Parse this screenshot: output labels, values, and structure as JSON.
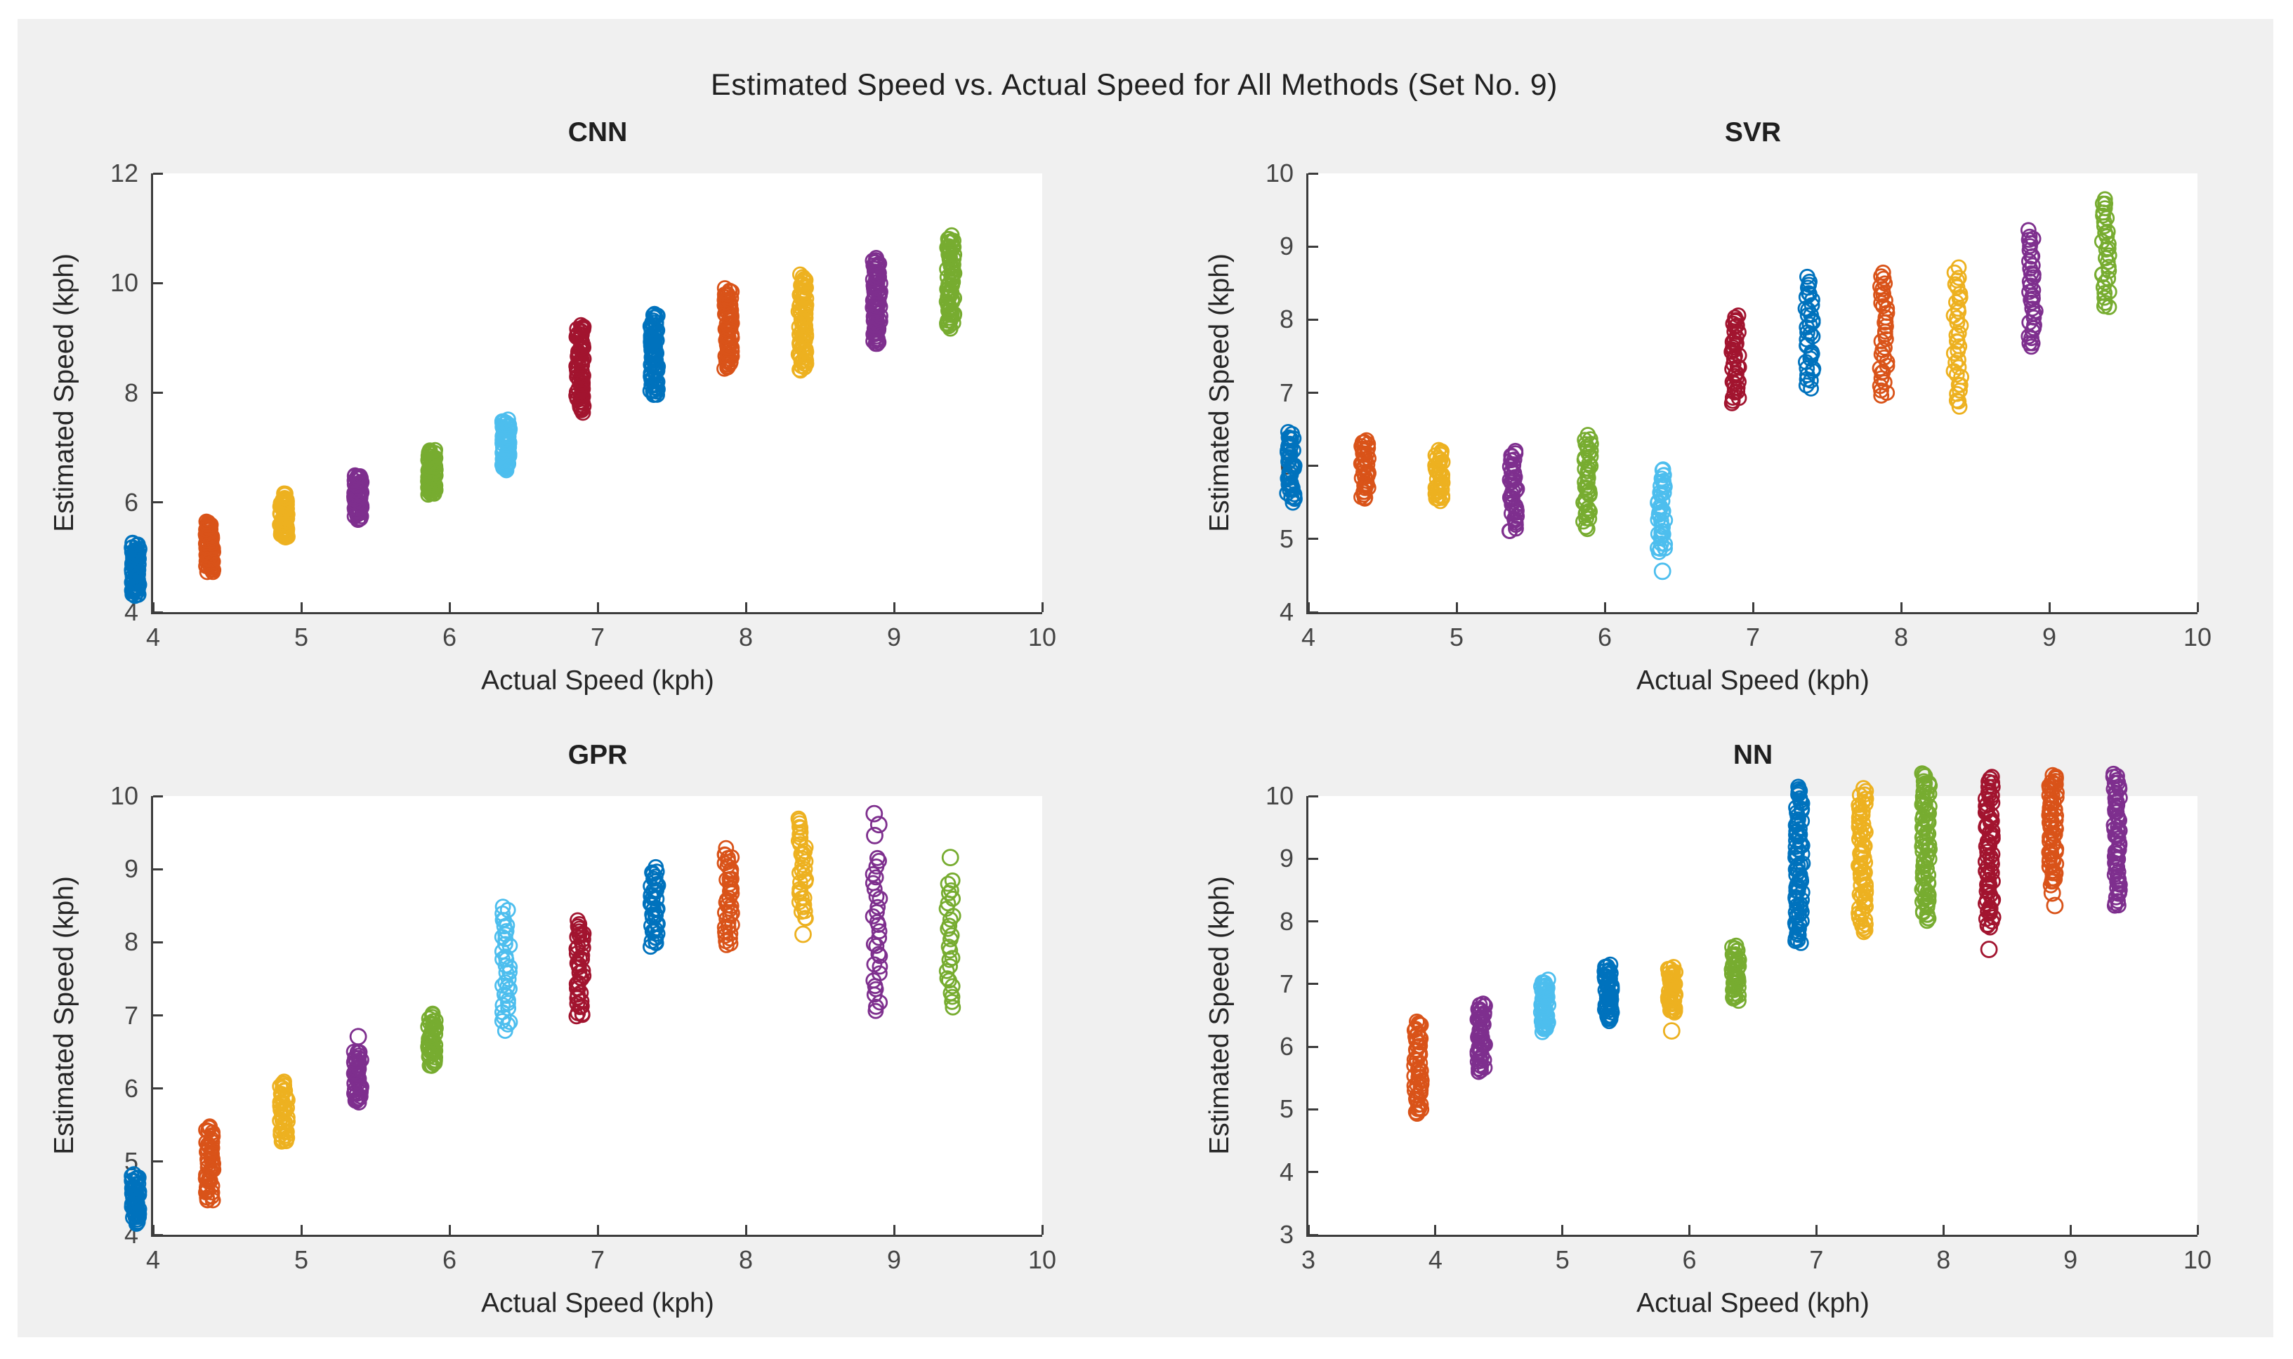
{
  "figure": {
    "title": "Estimated Speed vs. Actual Speed for All Methods (Set No. 9)",
    "background": "#ffffff",
    "panel_color": "#f0f0f0",
    "spine_color": "#3c3c3c",
    "text_color": "#1f1f1f",
    "tick_label_color": "#454545"
  },
  "palette": {
    "blue": "#0072BD",
    "orange": "#D95319",
    "yellow": "#EDB120",
    "purple": "#7E2F8E",
    "green": "#77AC30",
    "lightblue": "#4DBEEE",
    "darkred": "#A2142F"
  },
  "chart_data": [
    {
      "id": "cnn",
      "type": "scatter",
      "title": "CNN",
      "xlabel": "Actual Speed (kph)",
      "ylabel": "Estimated Speed (kph)",
      "xlim": [
        4,
        10
      ],
      "ylim": [
        4,
        12
      ],
      "xticks": [
        4,
        5,
        6,
        7,
        8,
        9,
        10
      ],
      "yticks": [
        4,
        6,
        8,
        10,
        12
      ],
      "grid": false,
      "marker": "open-circle",
      "series": [
        {
          "x": 4.0,
          "color": "blue",
          "y_min": 3.95,
          "y_max": 4.9,
          "n": 70,
          "outliers": []
        },
        {
          "x": 4.5,
          "color": "orange",
          "y_min": 4.4,
          "y_max": 5.3,
          "n": 70,
          "outliers": []
        },
        {
          "x": 5.0,
          "color": "yellow",
          "y_min": 5.0,
          "y_max": 5.8,
          "n": 70,
          "outliers": []
        },
        {
          "x": 5.5,
          "color": "purple",
          "y_min": 5.35,
          "y_max": 6.15,
          "n": 70,
          "outliers": []
        },
        {
          "x": 6.0,
          "color": "green",
          "y_min": 5.8,
          "y_max": 6.6,
          "n": 70,
          "outliers": []
        },
        {
          "x": 6.5,
          "color": "lightblue",
          "y_min": 6.25,
          "y_max": 7.15,
          "n": 70,
          "outliers": []
        },
        {
          "x": 7.0,
          "color": "darkred",
          "y_min": 7.3,
          "y_max": 8.9,
          "n": 75,
          "outliers": []
        },
        {
          "x": 7.5,
          "color": "blue",
          "y_min": 7.6,
          "y_max": 9.1,
          "n": 75,
          "outliers": []
        },
        {
          "x": 8.0,
          "color": "orange",
          "y_min": 8.1,
          "y_max": 9.55,
          "n": 75,
          "outliers": []
        },
        {
          "x": 8.5,
          "color": "yellow",
          "y_min": 8.05,
          "y_max": 9.8,
          "n": 75,
          "outliers": []
        },
        {
          "x": 9.0,
          "color": "purple",
          "y_min": 8.55,
          "y_max": 10.1,
          "n": 75,
          "outliers": []
        },
        {
          "x": 9.5,
          "color": "green",
          "y_min": 8.85,
          "y_max": 10.5,
          "n": 70,
          "outliers": []
        }
      ]
    },
    {
      "id": "svr",
      "type": "scatter",
      "title": "SVR",
      "xlabel": "Actual Speed (kph)",
      "ylabel": "Estimated Speed (kph)",
      "xlim": [
        4,
        10
      ],
      "ylim": [
        4,
        10
      ],
      "xticks": [
        4,
        5,
        6,
        7,
        8,
        9,
        10
      ],
      "yticks": [
        4,
        5,
        6,
        7,
        8,
        9,
        10
      ],
      "grid": false,
      "marker": "open-circle",
      "series": [
        {
          "x": 4.0,
          "color": "blue",
          "y_min": 5.25,
          "y_max": 6.2,
          "n": 42,
          "outliers": []
        },
        {
          "x": 4.5,
          "color": "orange",
          "y_min": 5.3,
          "y_max": 6.1,
          "n": 38,
          "outliers": []
        },
        {
          "x": 5.0,
          "color": "yellow",
          "y_min": 5.25,
          "y_max": 5.95,
          "n": 38,
          "outliers": []
        },
        {
          "x": 5.5,
          "color": "purple",
          "y_min": 4.85,
          "y_max": 5.95,
          "n": 40,
          "outliers": []
        },
        {
          "x": 6.0,
          "color": "green",
          "y_min": 4.9,
          "y_max": 6.15,
          "n": 40,
          "outliers": []
        },
        {
          "x": 6.5,
          "color": "lightblue",
          "y_min": 4.55,
          "y_max": 5.7,
          "n": 40,
          "outliers": [
            4.3
          ]
        },
        {
          "x": 7.0,
          "color": "darkred",
          "y_min": 6.6,
          "y_max": 7.8,
          "n": 40,
          "outliers": []
        },
        {
          "x": 7.5,
          "color": "blue",
          "y_min": 6.8,
          "y_max": 8.3,
          "n": 36,
          "outliers": []
        },
        {
          "x": 8.0,
          "color": "orange",
          "y_min": 6.7,
          "y_max": 8.4,
          "n": 36,
          "outliers": []
        },
        {
          "x": 8.5,
          "color": "yellow",
          "y_min": 6.55,
          "y_max": 8.45,
          "n": 36,
          "outliers": []
        },
        {
          "x": 9.0,
          "color": "purple",
          "y_min": 7.35,
          "y_max": 8.95,
          "n": 36,
          "outliers": []
        },
        {
          "x": 9.5,
          "color": "green",
          "y_min": 7.9,
          "y_max": 9.4,
          "n": 32,
          "outliers": []
        }
      ]
    },
    {
      "id": "gpr",
      "type": "scatter",
      "title": "GPR",
      "xlabel": "Actual Speed (kph)",
      "ylabel": "Estimated Speed (kph)",
      "xlim": [
        4,
        10
      ],
      "ylim": [
        4,
        10
      ],
      "xticks": [
        4,
        5,
        6,
        7,
        8,
        9,
        10
      ],
      "yticks": [
        4,
        5,
        6,
        7,
        8,
        9,
        10
      ],
      "grid": false,
      "marker": "open-circle",
      "series": [
        {
          "x": 4.0,
          "color": "blue",
          "y_min": 3.9,
          "y_max": 4.55,
          "n": 50,
          "outliers": []
        },
        {
          "x": 4.5,
          "color": "orange",
          "y_min": 4.2,
          "y_max": 5.2,
          "n": 50,
          "outliers": []
        },
        {
          "x": 5.0,
          "color": "yellow",
          "y_min": 5.0,
          "y_max": 5.85,
          "n": 45,
          "outliers": []
        },
        {
          "x": 5.5,
          "color": "purple",
          "y_min": 5.55,
          "y_max": 6.25,
          "n": 45,
          "outliers": [
            6.45
          ]
        },
        {
          "x": 6.0,
          "color": "green",
          "y_min": 6.05,
          "y_max": 6.75,
          "n": 45,
          "outliers": []
        },
        {
          "x": 6.5,
          "color": "lightblue",
          "y_min": 6.55,
          "y_max": 8.2,
          "n": 38,
          "outliers": []
        },
        {
          "x": 7.0,
          "color": "darkred",
          "y_min": 6.7,
          "y_max": 8.05,
          "n": 42,
          "outliers": []
        },
        {
          "x": 7.5,
          "color": "blue",
          "y_min": 7.7,
          "y_max": 8.75,
          "n": 40,
          "outliers": []
        },
        {
          "x": 8.0,
          "color": "orange",
          "y_min": 7.7,
          "y_max": 9.0,
          "n": 40,
          "outliers": []
        },
        {
          "x": 8.5,
          "color": "yellow",
          "y_min": 8.05,
          "y_max": 9.45,
          "n": 36,
          "outliers": [
            7.85
          ]
        },
        {
          "x": 9.0,
          "color": "purple",
          "y_min": 6.8,
          "y_max": 8.9,
          "n": 30,
          "outliers": [
            9.2,
            9.35,
            9.5
          ]
        },
        {
          "x": 9.5,
          "color": "green",
          "y_min": 6.85,
          "y_max": 8.6,
          "n": 26,
          "outliers": [
            8.9
          ]
        }
      ]
    },
    {
      "id": "nn",
      "type": "scatter",
      "title": "NN",
      "xlabel": "Actual Speed (kph)",
      "ylabel": "Estimated Speed (kph)",
      "xlim": [
        3,
        10
      ],
      "ylim": [
        3,
        10
      ],
      "xticks": [
        3,
        4,
        5,
        6,
        7,
        8,
        9,
        10
      ],
      "yticks": [
        3,
        4,
        5,
        6,
        7,
        8,
        9,
        10
      ],
      "grid": false,
      "marker": "open-circle",
      "series": [
        {
          "x": 4.0,
          "color": "orange",
          "y_min": 4.6,
          "y_max": 6.1,
          "n": 55,
          "outliers": []
        },
        {
          "x": 4.5,
          "color": "purple",
          "y_min": 5.3,
          "y_max": 6.4,
          "n": 50,
          "outliers": []
        },
        {
          "x": 5.0,
          "color": "lightblue",
          "y_min": 5.95,
          "y_max": 6.75,
          "n": 50,
          "outliers": []
        },
        {
          "x": 5.5,
          "color": "blue",
          "y_min": 6.1,
          "y_max": 7.0,
          "n": 50,
          "outliers": []
        },
        {
          "x": 6.0,
          "color": "yellow",
          "y_min": 6.25,
          "y_max": 6.95,
          "n": 45,
          "outliers": [
            5.95
          ]
        },
        {
          "x": 6.5,
          "color": "green",
          "y_min": 6.45,
          "y_max": 7.3,
          "n": 45,
          "outliers": []
        },
        {
          "x": 7.0,
          "color": "blue",
          "y_min": 7.35,
          "y_max": 9.85,
          "n": 80,
          "outliers": []
        },
        {
          "x": 7.5,
          "color": "yellow",
          "y_min": 7.55,
          "y_max": 9.8,
          "n": 72,
          "outliers": []
        },
        {
          "x": 8.0,
          "color": "green",
          "y_min": 7.7,
          "y_max": 10.05,
          "n": 80,
          "outliers": []
        },
        {
          "x": 8.5,
          "color": "darkred",
          "y_min": 7.6,
          "y_max": 10.0,
          "n": 72,
          "outliers": [
            7.25
          ]
        },
        {
          "x": 9.0,
          "color": "orange",
          "y_min": 8.3,
          "y_max": 10.05,
          "n": 65,
          "outliers": [
            7.95,
            8.15
          ]
        },
        {
          "x": 9.5,
          "color": "purple",
          "y_min": 7.95,
          "y_max": 10.05,
          "n": 65,
          "outliers": []
        }
      ]
    }
  ]
}
